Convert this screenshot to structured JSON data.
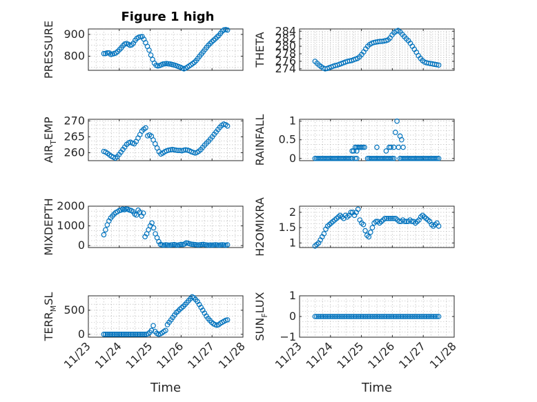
{
  "figure_title": "Figure 1 high",
  "marker_color": "#0072bd",
  "chart_data": [
    {
      "type": "scatter",
      "marker": "circle",
      "grid": true,
      "title": "Figure 1 high",
      "ylabel": "PRESSURE",
      "xlabel": "",
      "xlim": [
        "11/23",
        "11/28"
      ],
      "ylim": [
        735,
        925
      ],
      "xticks": [
        "11/23",
        "11/24",
        "11/25",
        "11/26",
        "11/27",
        "11/28"
      ],
      "xticks_visible": false,
      "yticks": [
        800,
        900
      ],
      "x_start": "11/23 12:00",
      "x_end": "11/27 12:00",
      "y": [
        812,
        812,
        815,
        815,
        808,
        810,
        812,
        815,
        822,
        830,
        838,
        848,
        856,
        858,
        855,
        850,
        852,
        860,
        873,
        882,
        887,
        889,
        890,
        878,
        862,
        845,
        828,
        805,
        785,
        768,
        758,
        755,
        757,
        760,
        764,
        765,
        766,
        765,
        764,
        762,
        760,
        758,
        755,
        752,
        749,
        745,
        742,
        745,
        750,
        755,
        760,
        766,
        772,
        780,
        790,
        800,
        810,
        820,
        830,
        840,
        850,
        858,
        866,
        873,
        880,
        888,
        895,
        905,
        915,
        921,
        922,
        920
      ]
    },
    {
      "type": "scatter",
      "marker": "circle",
      "grid": true,
      "ylabel": "THETA",
      "xlabel": "",
      "xlim": [
        "11/23",
        "11/28"
      ],
      "ylim": [
        273.6,
        284.6
      ],
      "xticks": [
        "11/23",
        "11/24",
        "11/25",
        "11/26",
        "11/27",
        "11/28"
      ],
      "xticks_visible": false,
      "yticks": [
        274,
        276,
        278,
        280,
        282,
        284
      ],
      "x_start": "11/23 12:00",
      "x_end": "11/27 12:00",
      "y": [
        276.0,
        275.5,
        275.0,
        274.6,
        274.2,
        274.0,
        274.1,
        274.3,
        274.5,
        274.7,
        274.9,
        275.0,
        275.2,
        275.4,
        275.6,
        275.8,
        276.0,
        276.1,
        276.2,
        276.4,
        276.6,
        276.8,
        277.2,
        277.8,
        278.5,
        279.3,
        280.0,
        280.5,
        280.8,
        281.0,
        281.1,
        281.2,
        281.3,
        281.3,
        281.4,
        281.5,
        281.7,
        282.2,
        283.0,
        283.6,
        284.0,
        284.2,
        283.8,
        283.2,
        282.6,
        282.0,
        281.5,
        280.8,
        280.0,
        279.2,
        278.4,
        277.5,
        276.8,
        276.2,
        275.8,
        275.6,
        275.5,
        275.4,
        275.3,
        275.2,
        275.1,
        275.0
      ]
    },
    {
      "type": "scatter",
      "marker": "circle",
      "grid": true,
      "ylabel": "AIR_TEMP",
      "xlabel": "",
      "xlim": [
        "11/23",
        "11/28"
      ],
      "ylim": [
        257.5,
        270.5
      ],
      "xticks": [
        "11/23",
        "11/24",
        "11/25",
        "11/26",
        "11/27",
        "11/28"
      ],
      "xticks_visible": false,
      "yticks": [
        260,
        265,
        270
      ],
      "x_start": "11/23 12:00",
      "x_end": "11/27 12:00",
      "y": [
        260.4,
        260.2,
        259.8,
        259.3,
        258.9,
        258.6,
        258.3,
        258.7,
        259.4,
        260.2,
        261.0,
        261.8,
        262.6,
        263.1,
        263.3,
        263.0,
        262.8,
        263.5,
        264.6,
        265.7,
        266.8,
        267.4,
        267.8,
        265.3,
        265.6,
        265.2,
        264.0,
        262.8,
        261.5,
        260.3,
        259.6,
        259.9,
        260.3,
        260.6,
        260.8,
        260.9,
        261.0,
        260.9,
        260.8,
        260.7,
        260.7,
        260.6,
        260.8,
        260.9,
        260.8,
        260.6,
        260.3,
        260.1,
        259.9,
        260.1,
        260.5,
        261.0,
        261.7,
        262.4,
        263.0,
        263.6,
        264.3,
        265.0,
        265.8,
        266.5,
        267.3,
        268.0,
        268.6,
        269.0,
        268.8,
        268.4
      ]
    },
    {
      "type": "scatter",
      "marker": "circle",
      "grid": true,
      "ylabel": "RAINFALL",
      "xlabel": "",
      "xlim": [
        "11/23",
        "11/28"
      ],
      "ylim": [
        -0.06,
        1.05
      ],
      "xticks": [
        "11/23",
        "11/24",
        "11/25",
        "11/26",
        "11/27",
        "11/28"
      ],
      "xticks_visible": false,
      "yticks": [
        0,
        0.5,
        1
      ],
      "yticklabels": [
        "0",
        "0.5",
        "1"
      ],
      "points": [
        {
          "x": "11/24 16:48",
          "y": 0.2
        },
        {
          "x": "11/24 18:00",
          "y": 0.2
        },
        {
          "x": "11/24 19:12",
          "y": 0.3
        },
        {
          "x": "11/24 20:24",
          "y": 0.2
        },
        {
          "x": "11/24 20:24",
          "y": 0.3
        },
        {
          "x": "11/24 21:36",
          "y": 0.3
        },
        {
          "x": "11/24 22:48",
          "y": 0.3
        },
        {
          "x": "11/25 00:00",
          "y": 0.3
        },
        {
          "x": "11/25 01:12",
          "y": 0.3
        },
        {
          "x": "11/25 02:24",
          "y": 0.3
        },
        {
          "x": "11/25 12:00",
          "y": 0.3
        },
        {
          "x": "11/25 19:12",
          "y": 0.2
        },
        {
          "x": "11/25 21:36",
          "y": 0.3
        },
        {
          "x": "11/25 22:48",
          "y": 0.3
        },
        {
          "x": "11/26 01:12",
          "y": 0.3
        },
        {
          "x": "11/26 02:24",
          "y": 0.7
        },
        {
          "x": "11/26 03:36",
          "y": 1.0
        },
        {
          "x": "11/26 04:48",
          "y": 0.3
        },
        {
          "x": "11/26 06:00",
          "y": 0.6
        },
        {
          "x": "11/26 07:12",
          "y": 0.5
        },
        {
          "x": "11/26 08:24",
          "y": 0.3
        }
      ],
      "zero_runs": [
        [
          "11/23 12:00",
          "11/24 16:48"
        ],
        [
          "11/24 19:12",
          "11/24 20:24"
        ],
        [
          "11/25 04:48",
          "11/26 01:12"
        ],
        [
          "11/26 06:00",
          "11/27 12:00"
        ]
      ]
    },
    {
      "type": "scatter",
      "marker": "circle",
      "grid": true,
      "ylabel": "MIXDEPTH",
      "xlabel": "",
      "xlim": [
        "11/23",
        "11/28"
      ],
      "ylim": [
        -100,
        2000
      ],
      "xticks": [
        "11/23",
        "11/24",
        "11/25",
        "11/26",
        "11/27",
        "11/28"
      ],
      "xticks_visible": false,
      "yticks": [
        0,
        1000,
        2000
      ],
      "x_start": "11/23 12:00",
      "x_end": "11/27 12:00",
      "y": [
        550,
        800,
        1050,
        1250,
        1400,
        1500,
        1600,
        1680,
        1720,
        1780,
        1800,
        1850,
        1820,
        1860,
        1840,
        1800,
        1780,
        1720,
        1600,
        1550,
        1800,
        1700,
        1500,
        1650,
        450,
        600,
        800,
        1000,
        1150,
        900,
        600,
        400,
        200,
        60,
        30,
        20,
        40,
        30,
        20,
        30,
        40,
        50,
        30,
        20,
        40,
        60,
        50,
        80,
        140,
        120,
        90,
        70,
        60,
        50,
        40,
        30,
        40,
        50,
        60,
        40,
        30,
        20,
        30,
        20,
        30,
        40,
        30,
        20,
        30,
        40,
        30,
        20,
        40
      ]
    },
    {
      "type": "scatter",
      "marker": "circle",
      "grid": true,
      "ylabel": "H2OMIXRA",
      "xlabel": "",
      "xlim": [
        "11/23",
        "11/28"
      ],
      "ylim": [
        0.85,
        2.2
      ],
      "xticks": [
        "11/23",
        "11/24",
        "11/25",
        "11/26",
        "11/27",
        "11/28"
      ],
      "xticks_visible": false,
      "yticks": [
        1,
        1.5,
        2
      ],
      "yticklabels": [
        "1",
        "1.5",
        "2"
      ],
      "x_start": "11/23 12:00",
      "x_end": "11/27 12:00",
      "y": [
        0.9,
        0.95,
        1.0,
        1.1,
        1.2,
        1.3,
        1.45,
        1.55,
        1.6,
        1.65,
        1.7,
        1.75,
        1.8,
        1.85,
        1.9,
        1.85,
        1.8,
        1.9,
        1.85,
        1.9,
        2.0,
        2.0,
        1.9,
        2.0,
        2.1,
        1.75,
        1.65,
        1.6,
        1.4,
        1.25,
        1.2,
        1.35,
        1.5,
        1.65,
        1.7,
        1.7,
        1.65,
        1.7,
        1.75,
        1.8,
        1.8,
        1.8,
        1.8,
        1.8,
        1.8,
        1.8,
        1.75,
        1.7,
        1.7,
        1.75,
        1.7,
        1.7,
        1.7,
        1.75,
        1.7,
        1.7,
        1.65,
        1.7,
        1.75,
        1.85,
        1.9,
        1.85,
        1.8,
        1.75,
        1.7,
        1.6,
        1.55,
        1.6,
        1.65,
        1.55
      ]
    },
    {
      "type": "scatter",
      "marker": "circle",
      "grid": true,
      "ylabel": "TERR_MSL",
      "xlabel": "Time",
      "xlim": [
        "11/23",
        "11/28"
      ],
      "ylim": [
        -60,
        800
      ],
      "xticks": [
        "11/23",
        "11/24",
        "11/25",
        "11/26",
        "11/27",
        "11/28"
      ],
      "xticks_visible": true,
      "yticks": [
        0,
        500
      ],
      "x_start": "11/23 12:00",
      "x_end": "11/27 12:00",
      "y": [
        0,
        0,
        0,
        0,
        0,
        0,
        0,
        0,
        0,
        0,
        0,
        0,
        0,
        0,
        0,
        0,
        0,
        0,
        0,
        0,
        0,
        0,
        0,
        0,
        0,
        10,
        40,
        80,
        180,
        60,
        20,
        0,
        10,
        30,
        60,
        80,
        200,
        250,
        300,
        350,
        400,
        450,
        480,
        520,
        550,
        580,
        620,
        660,
        700,
        740,
        780,
        760,
        720,
        680,
        620,
        560,
        500,
        440,
        380,
        330,
        290,
        250,
        220,
        200,
        190,
        200,
        230,
        250,
        270,
        290,
        300
      ]
    },
    {
      "type": "scatter",
      "marker": "circle",
      "grid": true,
      "ylabel": "SUN_FLUX",
      "xlabel": "Time",
      "xlim": [
        "11/23",
        "11/28"
      ],
      "ylim": [
        -1,
        1
      ],
      "xticks": [
        "11/23",
        "11/24",
        "11/25",
        "11/26",
        "11/27",
        "11/28"
      ],
      "xticks_visible": true,
      "yticks": [
        -1,
        0,
        1
      ],
      "yticklabels": [
        "-1",
        "0",
        "1"
      ],
      "x_start": "11/23 12:00",
      "x_end": "11/27 12:00",
      "y_constant": 0,
      "n_points": 72
    }
  ]
}
